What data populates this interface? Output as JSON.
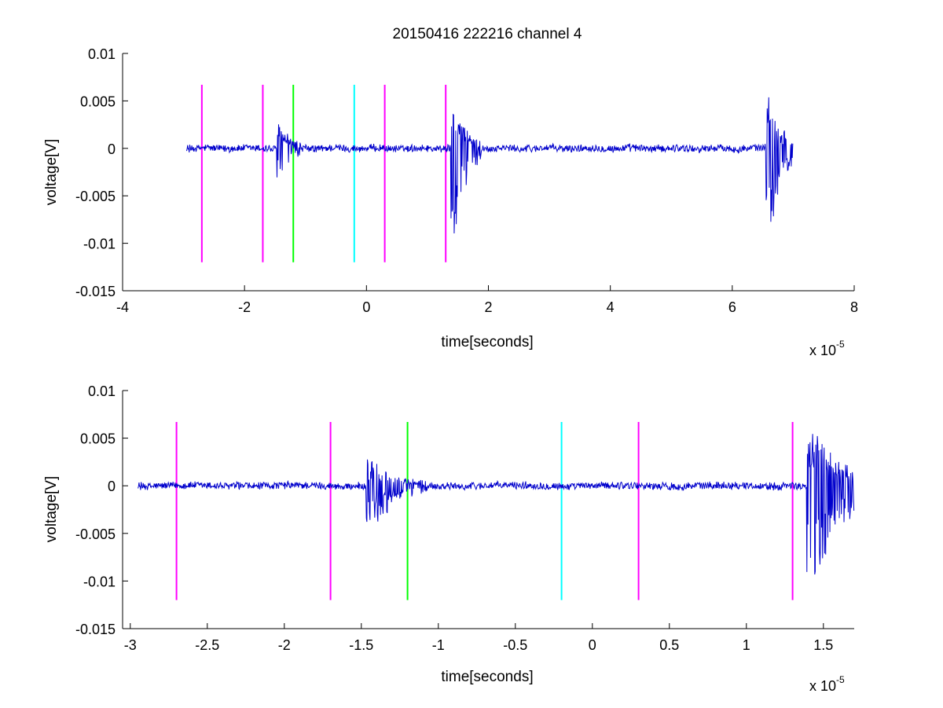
{
  "chart_data": [
    {
      "type": "line",
      "title": "20150416 222216 channel 4",
      "xlabel": "time[seconds]",
      "ylabel": "voltage[V]",
      "x_multiplier_label": {
        "base": "x 10",
        "exponent": "-5"
      },
      "xlim": [
        -4,
        8
      ],
      "ylim": [
        -0.015,
        0.01
      ],
      "xticks": [
        -4,
        -2,
        0,
        2,
        4,
        6,
        8
      ],
      "xtick_labels": [
        "-4",
        "-2",
        "0",
        "2",
        "4",
        "6",
        "8"
      ],
      "yticks": [
        0.01,
        0.005,
        0,
        -0.005,
        -0.01,
        -0.015
      ],
      "ytick_labels": [
        "0.01",
        "0.005",
        "0",
        "-0.005",
        "-0.01",
        "-0.015"
      ],
      "grid": false,
      "signal": {
        "color": "#0000cc",
        "x_start": -2.95,
        "x_end": 7.0,
        "baseline_noise_amplitude": 0.0004,
        "bursts": [
          {
            "x": -1.42,
            "peak_min": -0.0045,
            "peak_max": 0.0027,
            "width": 0.35
          },
          {
            "x": 1.43,
            "peak_min": -0.011,
            "peak_max": 0.006,
            "width": 0.45
          },
          {
            "x": 6.6,
            "peak_min": -0.0103,
            "peak_max": 0.0058,
            "width": 0.45
          }
        ]
      },
      "markers": [
        {
          "x": -2.7,
          "y_top": 0.0067,
          "y_bottom": -0.012,
          "color": "#ff00ff"
        },
        {
          "x": -1.7,
          "y_top": 0.0067,
          "y_bottom": -0.012,
          "color": "#ff00ff"
        },
        {
          "x": -1.2,
          "y_top": 0.0067,
          "y_bottom": -0.012,
          "color": "#00ff00"
        },
        {
          "x": -0.2,
          "y_top": 0.0067,
          "y_bottom": -0.012,
          "color": "#00ffff"
        },
        {
          "x": 0.3,
          "y_top": 0.0067,
          "y_bottom": -0.012,
          "color": "#ff00ff"
        },
        {
          "x": 1.3,
          "y_top": 0.0067,
          "y_bottom": -0.012,
          "color": "#ff00ff"
        }
      ]
    },
    {
      "type": "line",
      "title": "",
      "xlabel": "time[seconds]",
      "ylabel": "voltage[V]",
      "x_multiplier_label": {
        "base": "x 10",
        "exponent": "-5"
      },
      "xlim": [
        -3.05,
        1.7
      ],
      "ylim": [
        -0.015,
        0.01
      ],
      "xticks": [
        -3,
        -2.5,
        -2,
        -1.5,
        -1,
        -0.5,
        0,
        0.5,
        1,
        1.5
      ],
      "xtick_labels": [
        "-3",
        "-2.5",
        "-2",
        "-1.5",
        "-1",
        "-0.5",
        "0",
        "0.5",
        "1",
        "1.5"
      ],
      "yticks": [
        0.01,
        0.005,
        0,
        -0.005,
        -0.01,
        -0.015
      ],
      "ytick_labels": [
        "0.01",
        "0.005",
        "0",
        "-0.005",
        "-0.01",
        "-0.015"
      ],
      "grid": false,
      "signal": {
        "color": "#0000cc",
        "x_start": -2.95,
        "x_end": 1.7,
        "baseline_noise_amplitude": 0.0004,
        "bursts": [
          {
            "x": -1.42,
            "peak_min": -0.0045,
            "peak_max": 0.0027,
            "width": 0.35
          },
          {
            "x": 1.44,
            "peak_min": -0.011,
            "peak_max": 0.006,
            "width": 0.45
          }
        ]
      },
      "markers": [
        {
          "x": -2.7,
          "y_top": 0.0067,
          "y_bottom": -0.012,
          "color": "#ff00ff"
        },
        {
          "x": -1.7,
          "y_top": 0.0067,
          "y_bottom": -0.012,
          "color": "#ff00ff"
        },
        {
          "x": -1.2,
          "y_top": 0.0067,
          "y_bottom": -0.012,
          "color": "#00ff00"
        },
        {
          "x": -0.2,
          "y_top": 0.0067,
          "y_bottom": -0.012,
          "color": "#00ffff"
        },
        {
          "x": 0.3,
          "y_top": 0.0067,
          "y_bottom": -0.012,
          "color": "#ff00ff"
        },
        {
          "x": 1.3,
          "y_top": 0.0067,
          "y_bottom": -0.012,
          "color": "#ff00ff"
        }
      ]
    }
  ]
}
